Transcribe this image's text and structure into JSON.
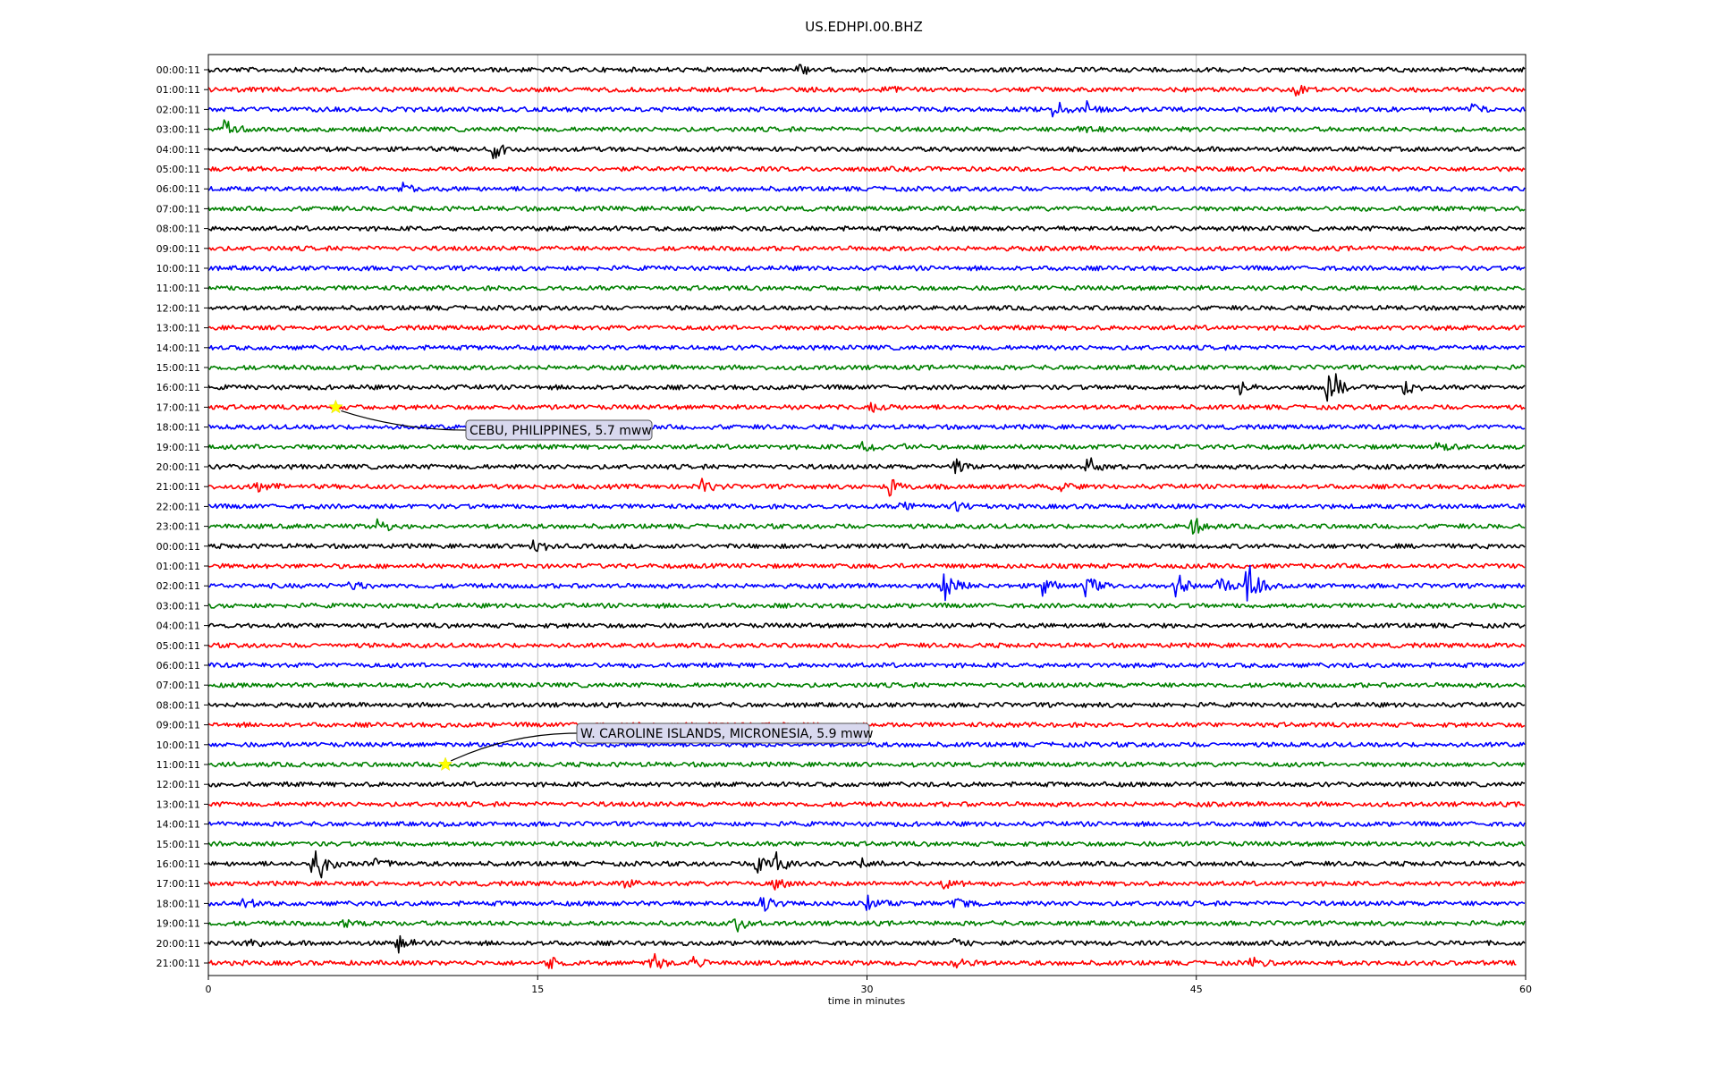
{
  "chart_data": {
    "type": "line",
    "title": "US.EDHPI.00.BHZ",
    "xlabel": "time in minutes",
    "ylabel": "",
    "xlim": [
      0,
      60
    ],
    "x_ticks": [
      0,
      15,
      30,
      45,
      60
    ],
    "grid": "vertical lines at x ticks",
    "trace_colors": [
      "#000000",
      "#ff0000",
      "#0000ff",
      "#008000"
    ],
    "row_labels": [
      "00:00:11",
      "01:00:11",
      "02:00:11",
      "03:00:11",
      "04:00:11",
      "05:00:11",
      "06:00:11",
      "07:00:11",
      "08:00:11",
      "09:00:11",
      "10:00:11",
      "11:00:11",
      "12:00:11",
      "13:00:11",
      "14:00:11",
      "15:00:11",
      "16:00:11",
      "17:00:11",
      "18:00:11",
      "19:00:11",
      "20:00:11",
      "21:00:11",
      "22:00:11",
      "23:00:11",
      "00:00:11",
      "01:00:11",
      "02:00:11",
      "03:00:11",
      "04:00:11",
      "05:00:11",
      "06:00:11",
      "07:00:11",
      "08:00:11",
      "09:00:11",
      "10:00:11",
      "11:00:11",
      "12:00:11",
      "13:00:11",
      "14:00:11",
      "15:00:11",
      "16:00:11",
      "17:00:11",
      "18:00:11",
      "19:00:11",
      "20:00:11",
      "21:00:11"
    ],
    "bursts": [
      {
        "row": 0,
        "t": 26.8,
        "amp": 0.8
      },
      {
        "row": 1,
        "t": 30.6,
        "amp": 0.5
      },
      {
        "row": 1,
        "t": 49.5,
        "amp": 0.5
      },
      {
        "row": 2,
        "t": 38.5,
        "amp": 0.9
      },
      {
        "row": 2,
        "t": 40.0,
        "amp": 0.6
      },
      {
        "row": 2,
        "t": 57.5,
        "amp": 0.5
      },
      {
        "row": 3,
        "t": 0.7,
        "amp": 1.0
      },
      {
        "row": 3,
        "t": 39.7,
        "amp": 0.5
      },
      {
        "row": 4,
        "t": 13.0,
        "amp": 1.4
      },
      {
        "row": 6,
        "t": 8.8,
        "amp": 0.7
      },
      {
        "row": 16,
        "t": 47.0,
        "amp": 0.6
      },
      {
        "row": 16,
        "t": 51.0,
        "amp": 2.2
      },
      {
        "row": 16,
        "t": 54.5,
        "amp": 0.8
      },
      {
        "row": 17,
        "t": 30.2,
        "amp": 0.4
      },
      {
        "row": 19,
        "t": 29.8,
        "amp": 0.7
      },
      {
        "row": 19,
        "t": 31.5,
        "amp": 0.5
      },
      {
        "row": 19,
        "t": 56.0,
        "amp": 0.5
      },
      {
        "row": 20,
        "t": 34.0,
        "amp": 0.9
      },
      {
        "row": 20,
        "t": 40.0,
        "amp": 0.9
      },
      {
        "row": 21,
        "t": 2.2,
        "amp": 0.8
      },
      {
        "row": 21,
        "t": 22.5,
        "amp": 0.8
      },
      {
        "row": 21,
        "t": 31.0,
        "amp": 1.0
      },
      {
        "row": 21,
        "t": 38.5,
        "amp": 0.6
      },
      {
        "row": 22,
        "t": 31.5,
        "amp": 0.6
      },
      {
        "row": 22,
        "t": 34.0,
        "amp": 0.5
      },
      {
        "row": 23,
        "t": 7.6,
        "amp": 0.9
      },
      {
        "row": 23,
        "t": 44.8,
        "amp": 1.1
      },
      {
        "row": 24,
        "t": 14.8,
        "amp": 0.8
      },
      {
        "row": 26,
        "t": 6.5,
        "amp": 0.6
      },
      {
        "row": 26,
        "t": 33.5,
        "amp": 2.0
      },
      {
        "row": 26,
        "t": 38.0,
        "amp": 1.0
      },
      {
        "row": 26,
        "t": 40.0,
        "amp": 1.0
      },
      {
        "row": 26,
        "t": 44.0,
        "amp": 1.3
      },
      {
        "row": 26,
        "t": 46.0,
        "amp": 1.2
      },
      {
        "row": 26,
        "t": 47.3,
        "amp": 2.5
      },
      {
        "row": 40,
        "t": 4.8,
        "amp": 3.0
      },
      {
        "row": 40,
        "t": 7.6,
        "amp": 0.6
      },
      {
        "row": 40,
        "t": 25.0,
        "amp": 1.2
      },
      {
        "row": 40,
        "t": 25.7,
        "amp": 1.5
      },
      {
        "row": 40,
        "t": 29.6,
        "amp": 0.5
      },
      {
        "row": 41,
        "t": 19.0,
        "amp": 0.5
      },
      {
        "row": 41,
        "t": 25.8,
        "amp": 0.5
      },
      {
        "row": 41,
        "t": 33.5,
        "amp": 0.7
      },
      {
        "row": 42,
        "t": 1.6,
        "amp": 0.6
      },
      {
        "row": 42,
        "t": 25.2,
        "amp": 1.2
      },
      {
        "row": 42,
        "t": 30.0,
        "amp": 0.6
      },
      {
        "row": 42,
        "t": 34.0,
        "amp": 0.6
      },
      {
        "row": 43,
        "t": 24.0,
        "amp": 0.8
      },
      {
        "row": 43,
        "t": 6.2,
        "amp": 0.4
      },
      {
        "row": 44,
        "t": 1.8,
        "amp": 0.5
      },
      {
        "row": 44,
        "t": 8.6,
        "amp": 0.8
      },
      {
        "row": 44,
        "t": 34.0,
        "amp": 0.5
      },
      {
        "row": 44,
        "t": 51.0,
        "amp": 0.4
      },
      {
        "row": 45,
        "t": 15.5,
        "amp": 0.6
      },
      {
        "row": 45,
        "t": 20.2,
        "amp": 1.0
      },
      {
        "row": 45,
        "t": 22.0,
        "amp": 0.5
      },
      {
        "row": 45,
        "t": 34.0,
        "amp": 0.5
      },
      {
        "row": 45,
        "t": 47.5,
        "amp": 0.5
      }
    ],
    "trace_end_minutes": [
      60,
      60,
      60,
      60,
      60,
      60,
      60,
      60,
      60,
      60,
      60,
      60,
      60,
      60,
      60,
      60,
      60,
      60,
      60,
      60,
      60,
      60,
      60,
      60,
      60,
      60,
      60,
      60,
      60,
      60,
      60,
      60,
      60,
      60,
      60,
      60,
      60,
      60,
      60,
      60,
      60,
      60,
      60,
      60,
      60,
      59.6
    ],
    "events": [
      {
        "label": "CEBU, PHILIPPINES, 5.7 mww",
        "row": 17,
        "t": 5.8,
        "marker_color": "#ffff00"
      },
      {
        "label": "W. CAROLINE ISLANDS, MICRONESIA, 5.9 mww",
        "row": 35,
        "t": 10.8,
        "marker_color": "#ffff00"
      }
    ]
  }
}
